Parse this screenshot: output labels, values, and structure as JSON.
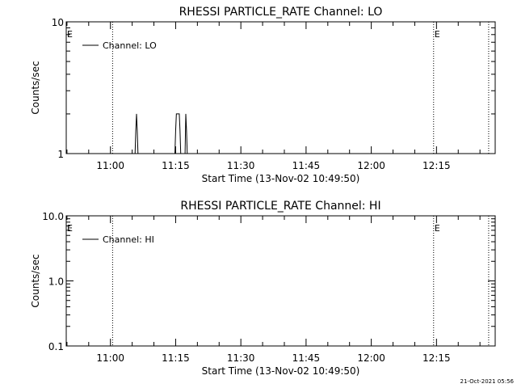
{
  "chart_data": [
    {
      "type": "line",
      "title": "RHESSI PARTICLE_RATE Channel: LO",
      "xlabel": "Start Time (13-Nov-02 10:49:50)",
      "ylabel": "Counts/sec",
      "yscale": "log",
      "ylim": [
        1,
        10
      ],
      "y_ticks": [
        {
          "value": 1,
          "label": "1"
        },
        {
          "value": 10,
          "label": "10"
        }
      ],
      "xlim": [
        "10:49:50",
        "12:28:30"
      ],
      "x_ticks": [
        "11:00",
        "11:15",
        "11:30",
        "11:45",
        "12:00",
        "12:15"
      ],
      "legend": {
        "entries": [
          "Channel: LO"
        ],
        "position": "top-left"
      },
      "grid": false,
      "vertical_markers": [
        {
          "time": "11:00:30",
          "style": "dotted",
          "label": ""
        },
        {
          "time": "12:14:20",
          "style": "dotted",
          "label": "E"
        },
        {
          "time": "12:27:00",
          "style": "dotted",
          "label": ""
        }
      ],
      "edge_label": "E",
      "series": [
        {
          "name": "Channel: LO",
          "x": [
            "11:05:40",
            "11:05:50",
            "11:06:00",
            "11:06:10",
            "11:06:20",
            "11:14:50",
            "11:15:00",
            "11:15:10",
            "11:15:20",
            "11:15:30",
            "11:15:40",
            "11:15:50",
            "11:16:00",
            "11:16:10",
            "11:17:10",
            "11:17:20",
            "11:17:30",
            "11:17:40"
          ],
          "y": [
            1,
            1.5,
            2,
            1.5,
            1,
            1,
            1.5,
            2,
            2,
            2,
            2,
            2,
            1.5,
            1,
            1,
            2,
            1.5,
            1
          ]
        }
      ]
    },
    {
      "type": "line",
      "title": "RHESSI PARTICLE_RATE Channel: HI",
      "xlabel": "Start Time (13-Nov-02 10:49:50)",
      "ylabel": "Counts/sec",
      "yscale": "log",
      "ylim": [
        0.1,
        10
      ],
      "y_ticks": [
        {
          "value": 0.1,
          "label": "0.1"
        },
        {
          "value": 1,
          "label": "1.0"
        },
        {
          "value": 10,
          "label": "10.0"
        }
      ],
      "xlim": [
        "10:49:50",
        "12:28:30"
      ],
      "x_ticks": [
        "11:00",
        "11:15",
        "11:30",
        "11:45",
        "12:00",
        "12:15"
      ],
      "legend": {
        "entries": [
          "Channel: HI"
        ],
        "position": "top-left"
      },
      "grid": false,
      "vertical_markers": [
        {
          "time": "11:00:30",
          "style": "dotted",
          "label": ""
        },
        {
          "time": "12:14:20",
          "style": "dotted",
          "label": "E"
        },
        {
          "time": "12:27:00",
          "style": "dotted",
          "label": ""
        }
      ],
      "edge_label": "E",
      "series": [
        {
          "name": "Channel: HI",
          "x": [],
          "y": []
        }
      ]
    }
  ],
  "footer": {
    "timestamp": "21-Oct-2021 05:56"
  }
}
